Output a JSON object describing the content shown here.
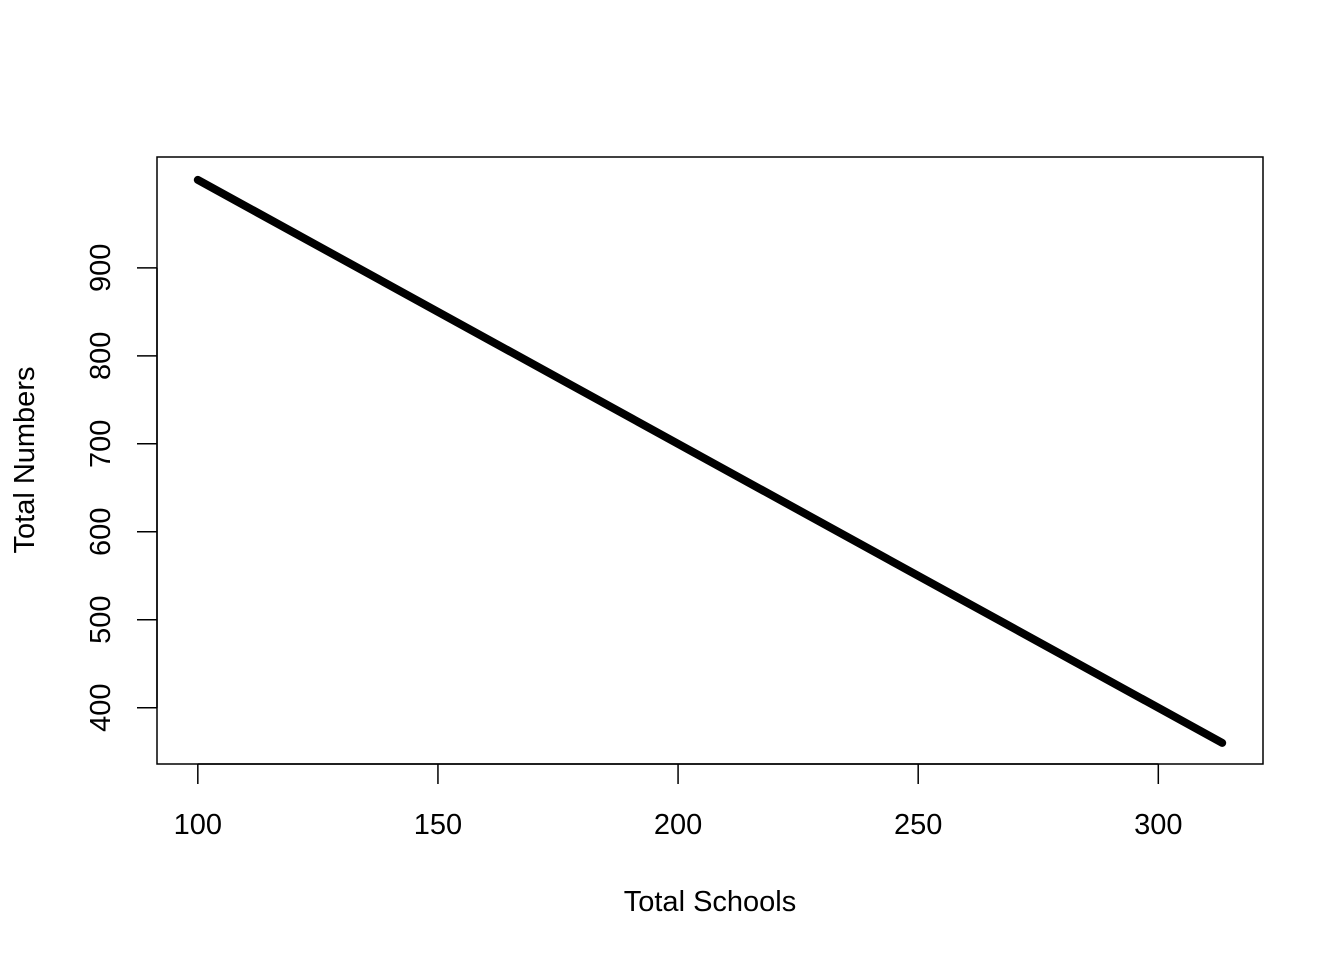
{
  "chart_data": {
    "type": "line",
    "title": "",
    "xlabel": "Total Schools",
    "ylabel": "Total Numbers",
    "xlim": [
      91.5,
      321.8
    ],
    "ylim": [
      336,
      1026
    ],
    "x_ticks": [
      100,
      150,
      200,
      250,
      300
    ],
    "y_ticks": [
      400,
      500,
      600,
      700,
      800,
      900
    ],
    "x_tick_labels": [
      "100",
      "150",
      "200",
      "250",
      "300"
    ],
    "y_tick_labels": [
      "400",
      "500",
      "600",
      "700",
      "800",
      "900"
    ],
    "grid": false,
    "legend": "none",
    "series": [
      {
        "color": "#000000",
        "x": [
          100,
          313.3
        ],
        "y": [
          1000,
          360
        ]
      }
    ]
  }
}
